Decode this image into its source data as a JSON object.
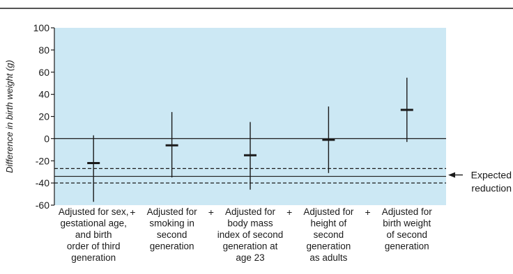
{
  "chart_data": {
    "type": "error-bar",
    "title": "",
    "ylabel": "Difference in birth weight (g)",
    "ylim": [
      -60,
      100
    ],
    "yticks": [
      100,
      80,
      60,
      40,
      20,
      0,
      -20,
      -40,
      -60
    ],
    "grid": false,
    "background_color": "#cce8f4",
    "categories": [
      [
        "Adjusted for sex,",
        "gestational age,",
        "and birth",
        "order of third",
        "generation"
      ],
      [
        "Adjusted for",
        "smoking in",
        "second",
        "generation"
      ],
      [
        "Adjusted for",
        "body mass",
        "index of second",
        "generation at",
        "age 23"
      ],
      [
        "Adjusted for",
        "height of",
        "second",
        "generation",
        "as adults"
      ],
      [
        "Adjusted for",
        "birth weight",
        "of second",
        "generation"
      ]
    ],
    "separator": "+",
    "estimates": [
      -22,
      -6,
      -15,
      -1,
      26
    ],
    "lower": [
      -57,
      -35,
      -46,
      -31,
      -3
    ],
    "upper": [
      3,
      24,
      15,
      29,
      55
    ],
    "reference_lines": {
      "zero": 0,
      "expected": -34,
      "expected_lower": -40,
      "expected_upper": -27
    },
    "annotation": [
      "Expected",
      "reduction"
    ]
  }
}
